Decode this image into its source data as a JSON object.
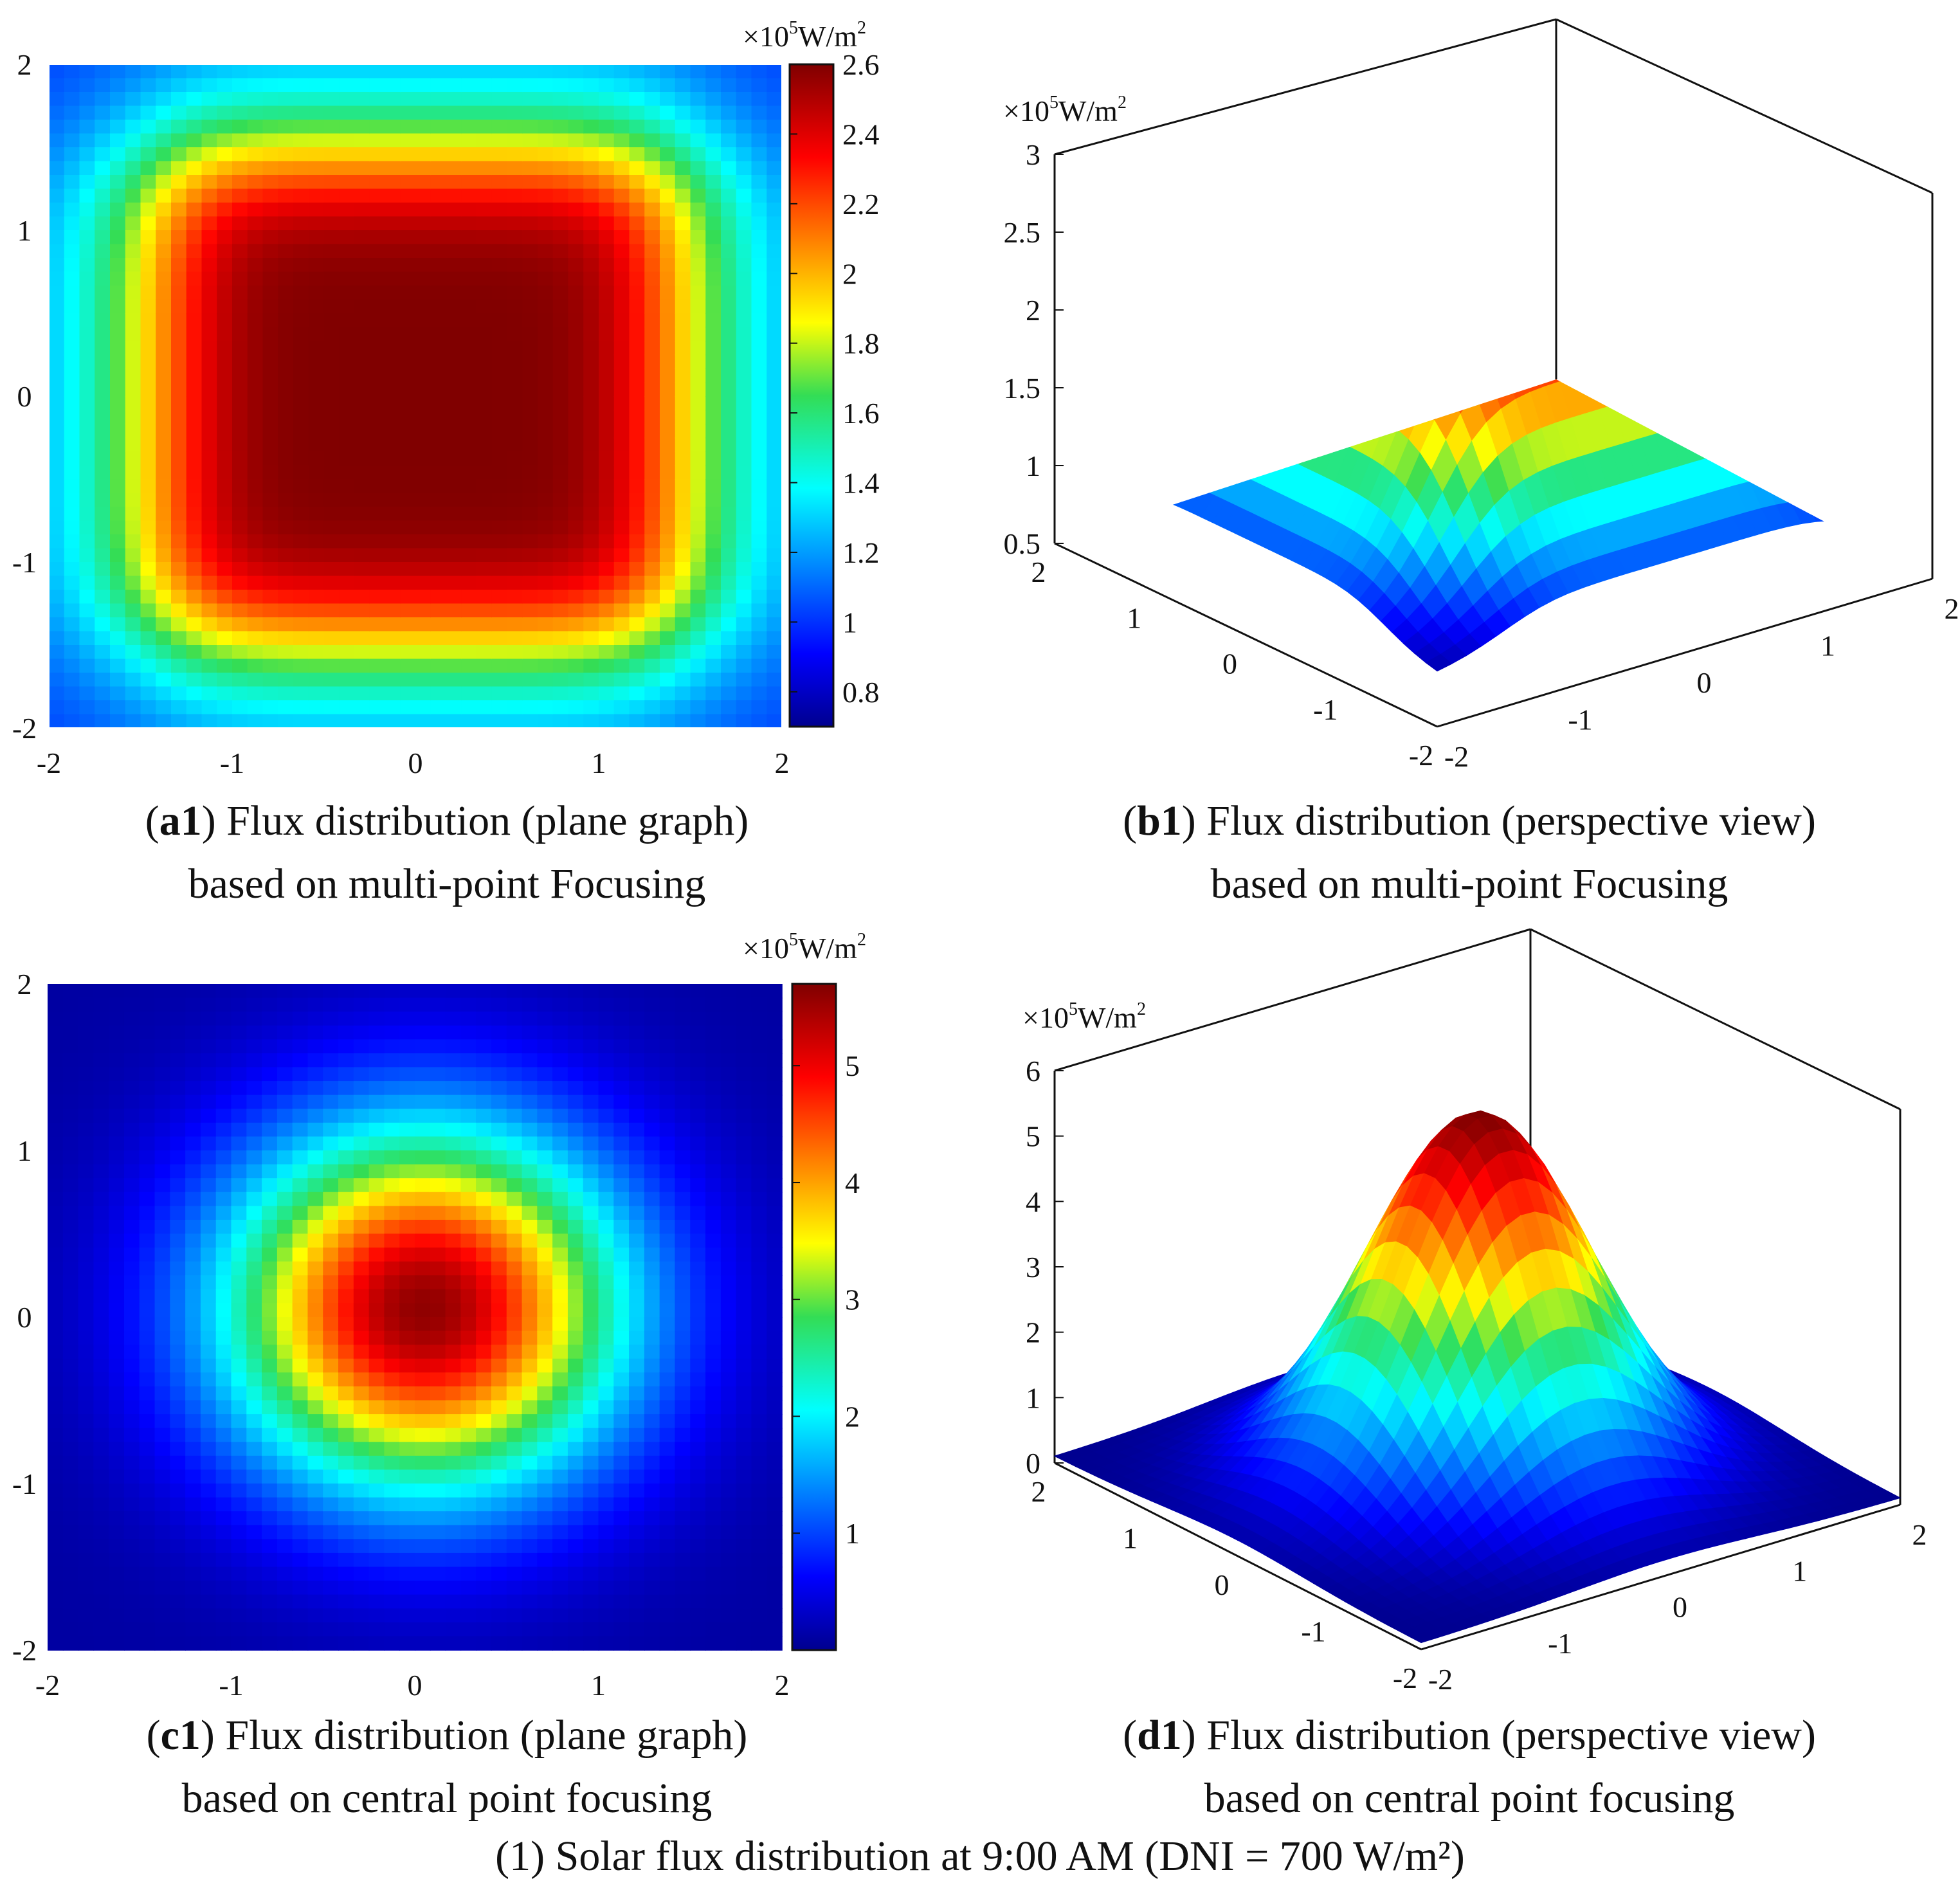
{
  "figure_caption": "(1) Solar flux distribution at 9:00 AM (DNI = 700 W/m²)",
  "chart_data": [
    {
      "id": "a1",
      "type": "heatmap",
      "caption_label": "a1",
      "caption_line1": "Flux distribution (plane graph)",
      "caption_line2": "based on multi-point Focusing",
      "unit_label": "×10",
      "unit_exp": "5",
      "unit_tail": "W/m",
      "unit_sq": "2",
      "xlim": [
        -2,
        2
      ],
      "ylim": [
        -2,
        2
      ],
      "x_ticks": [
        "-2",
        "-1",
        "0",
        "1",
        "2"
      ],
      "y_ticks": [
        "2",
        "1",
        "0",
        "-1",
        "-2"
      ],
      "colorbar_range": [
        0.7,
        2.6
      ],
      "colorbar_ticks": [
        "2.6",
        "2.4",
        "2.2",
        "2",
        "1.8",
        "1.6",
        "1.4",
        "1.2",
        "1",
        "0.8"
      ],
      "pattern": "flat-top square",
      "peak_value": 2.6,
      "edge_value": 1.0
    },
    {
      "id": "b1",
      "type": "surface3d",
      "caption_label": "b1",
      "caption_line1": "Flux distribution (perspective view)",
      "caption_line2": "based on multi-point Focusing",
      "unit_label": "×10",
      "unit_exp": "5",
      "unit_tail": "W/m",
      "unit_sq": "2",
      "zlim": [
        0.5,
        3
      ],
      "z_ticks": [
        "3",
        "2.5",
        "2",
        "1.5",
        "1",
        "0.5"
      ],
      "x_ticks": [
        "2",
        "1",
        "0",
        "-1",
        "-2"
      ],
      "y_ticks": [
        "-2",
        "-1",
        "0",
        "1",
        "2"
      ],
      "pattern": "flat-top square",
      "peak_value": 2.6,
      "edge_value": 0.8
    },
    {
      "id": "c1",
      "type": "heatmap",
      "caption_label": "c1",
      "caption_line1": "Flux distribution (plane graph)",
      "caption_line2": "based on central point focusing",
      "unit_label": "×10",
      "unit_exp": "5",
      "unit_tail": "W/m",
      "unit_sq": "2",
      "xlim": [
        -2,
        2
      ],
      "ylim": [
        -2,
        2
      ],
      "x_ticks": [
        "-2",
        "-1",
        "0",
        "1",
        "2"
      ],
      "y_ticks": [
        "2",
        "1",
        "0",
        "-1",
        "-2"
      ],
      "colorbar_range": [
        0,
        5.7
      ],
      "colorbar_ticks": [
        "5",
        "4",
        "3",
        "2",
        "1"
      ],
      "pattern": "gaussian",
      "peak_value": 5.6,
      "edge_value": 0.1
    },
    {
      "id": "d1",
      "type": "surface3d",
      "caption_label": "d1",
      "caption_line1": "Flux distribution (perspective view)",
      "caption_line2": "based on central point focusing",
      "unit_label": "×10",
      "unit_exp": "5",
      "unit_tail": "W/m",
      "unit_sq": "2",
      "zlim": [
        0,
        6
      ],
      "z_ticks": [
        "6",
        "5",
        "4",
        "3",
        "2",
        "1",
        "0"
      ],
      "x_ticks": [
        "2",
        "1",
        "0",
        "-1",
        "-2"
      ],
      "y_ticks": [
        "-2",
        "-1",
        "0",
        "1",
        "2"
      ],
      "pattern": "gaussian",
      "peak_value": 5.6,
      "edge_value": 0.1
    }
  ]
}
